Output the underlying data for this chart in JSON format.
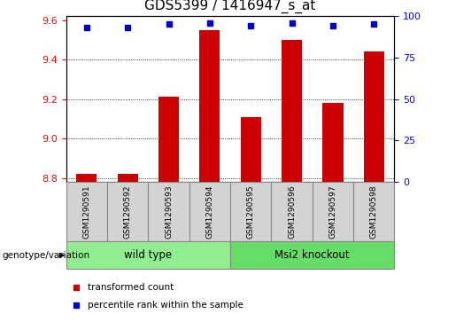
{
  "title": "GDS5399 / 1416947_s_at",
  "samples": [
    "GSM1290591",
    "GSM1290592",
    "GSM1290593",
    "GSM1290594",
    "GSM1290595",
    "GSM1290596",
    "GSM1290597",
    "GSM1290598"
  ],
  "transformed_count": [
    8.82,
    8.82,
    9.21,
    9.55,
    9.11,
    9.5,
    9.18,
    9.44
  ],
  "percentile_rank": [
    93,
    93,
    95,
    96,
    94,
    96,
    94,
    95
  ],
  "ylim_left": [
    8.78,
    9.62
  ],
  "ylim_right": [
    0,
    100
  ],
  "yticks_left": [
    8.8,
    9.0,
    9.2,
    9.4,
    9.6
  ],
  "yticks_right": [
    0,
    25,
    50,
    75,
    100
  ],
  "groups": [
    {
      "label": "wild type",
      "start": 0,
      "end": 3,
      "color": "#90EE90"
    },
    {
      "label": "Msi2 knockout",
      "start": 4,
      "end": 7,
      "color": "#66DD66"
    }
  ],
  "bar_color": "#CC0000",
  "dot_color": "#0000CC",
  "sample_bg_color": "#D3D3D3",
  "legend_items": [
    {
      "label": "transformed count",
      "color": "#CC0000"
    },
    {
      "label": "percentile rank within the sample",
      "color": "#0000CC"
    }
  ],
  "genotype_label": "genotype/variation",
  "title_fontsize": 11,
  "tick_fontsize": 8,
  "bar_width": 0.5
}
